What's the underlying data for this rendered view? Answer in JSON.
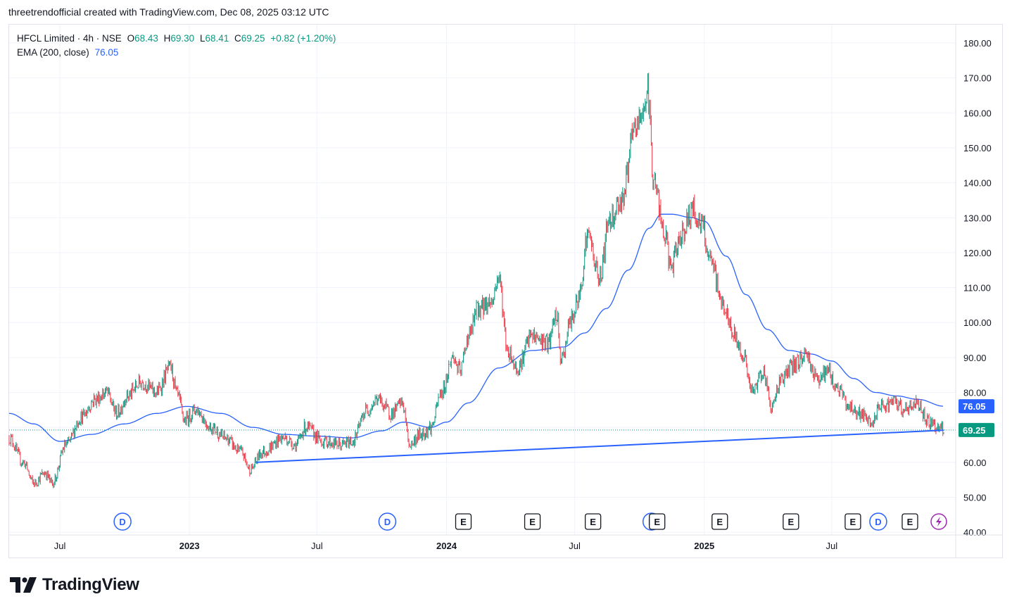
{
  "header": {
    "caption": "threetrendofficial created with TradingView.com, Dec 08, 2025 03:12 UTC"
  },
  "legend": {
    "symbol": "HFCL Limited · 4h · NSE",
    "o_label": "O",
    "o": "68.43",
    "h_label": "H",
    "h": "69.30",
    "l_label": "L",
    "l": "68.41",
    "c_label": "C",
    "c": "69.25",
    "change": "+0.82 (+1.20%)",
    "ema_label": "EMA (200, close)",
    "ema_value": "76.05"
  },
  "colors": {
    "up": "#089981",
    "down": "#f23645",
    "ema": "#2962ff",
    "trendline": "#2962ff",
    "grid": "#f0f3fa"
  },
  "chart_data": {
    "type": "candlestick",
    "timeframe": "4h",
    "y_ticks": [
      "180.00",
      "170.00",
      "160.00",
      "150.00",
      "140.00",
      "130.00",
      "120.00",
      "110.00",
      "100.00",
      "90.00",
      "80.00",
      "70.00",
      "60.00",
      "50.00",
      "40.00"
    ],
    "x_ticks": [
      {
        "label": "Jul",
        "date": "2022-07-01",
        "bold": false
      },
      {
        "label": "2023",
        "date": "2023-01-01",
        "bold": true
      },
      {
        "label": "Jul",
        "date": "2023-07-01",
        "bold": false
      },
      {
        "label": "2024",
        "date": "2024-01-01",
        "bold": true
      },
      {
        "label": "Jul",
        "date": "2024-07-01",
        "bold": false
      },
      {
        "label": "2025",
        "date": "2025-01-01",
        "bold": true
      },
      {
        "label": "Jul",
        "date": "2025-07-01",
        "bold": false
      }
    ],
    "ylim": [
      40,
      183
    ],
    "xlim": [
      "2022-04-20",
      "2025-12-24"
    ],
    "price_path": [
      [
        "2022-04-20",
        67
      ],
      [
        "2022-05-10",
        60
      ],
      [
        "2022-05-25",
        54
      ],
      [
        "2022-06-10",
        57
      ],
      [
        "2022-06-20",
        54
      ],
      [
        "2022-07-10",
        65
      ],
      [
        "2022-08-01",
        73
      ],
      [
        "2022-08-20",
        78
      ],
      [
        "2022-09-05",
        80
      ],
      [
        "2022-09-20",
        74
      ],
      [
        "2022-10-05",
        79
      ],
      [
        "2022-10-25",
        83
      ],
      [
        "2022-11-15",
        80
      ],
      [
        "2022-12-05",
        87
      ],
      [
        "2022-12-15",
        79
      ],
      [
        "2022-12-25",
        72
      ],
      [
        "2023-01-10",
        75
      ],
      [
        "2023-02-01",
        70
      ],
      [
        "2023-02-20",
        67
      ],
      [
        "2023-03-15",
        63
      ],
      [
        "2023-03-28",
        58
      ],
      [
        "2023-04-15",
        63
      ],
      [
        "2023-05-15",
        67
      ],
      [
        "2023-06-01",
        65
      ],
      [
        "2023-06-15",
        70
      ],
      [
        "2023-07-10",
        66
      ],
      [
        "2023-08-05",
        65
      ],
      [
        "2023-08-20",
        66
      ],
      [
        "2023-09-10",
        75
      ],
      [
        "2023-09-25",
        78
      ],
      [
        "2023-10-15",
        74
      ],
      [
        "2023-10-30",
        77
      ],
      [
        "2023-11-10",
        65
      ],
      [
        "2023-11-25",
        68
      ],
      [
        "2023-12-10",
        70
      ],
      [
        "2023-12-25",
        80
      ],
      [
        "2024-01-10",
        90
      ],
      [
        "2024-01-20",
        86
      ],
      [
        "2024-02-01",
        96
      ],
      [
        "2024-02-15",
        104
      ],
      [
        "2024-03-05",
        106
      ],
      [
        "2024-03-15",
        113
      ],
      [
        "2024-03-28",
        92
      ],
      [
        "2024-04-10",
        87
      ],
      [
        "2024-05-01",
        96
      ],
      [
        "2024-05-25",
        94
      ],
      [
        "2024-06-05",
        102
      ],
      [
        "2024-06-12",
        89
      ],
      [
        "2024-06-25",
        100
      ],
      [
        "2024-07-05",
        106
      ],
      [
        "2024-07-20",
        125
      ],
      [
        "2024-08-05",
        113
      ],
      [
        "2024-08-20",
        130
      ],
      [
        "2024-09-05",
        135
      ],
      [
        "2024-09-25",
        155
      ],
      [
        "2024-10-05",
        160
      ],
      [
        "2024-10-12",
        166
      ],
      [
        "2024-10-22",
        140
      ],
      [
        "2024-11-05",
        125
      ],
      [
        "2024-11-15",
        116
      ],
      [
        "2024-12-01",
        126
      ],
      [
        "2024-12-15",
        132
      ],
      [
        "2024-12-28",
        128
      ],
      [
        "2025-01-10",
        117
      ],
      [
        "2025-01-28",
        105
      ],
      [
        "2025-02-10",
        97
      ],
      [
        "2025-02-25",
        91
      ],
      [
        "2025-03-10",
        80
      ],
      [
        "2025-03-25",
        86
      ],
      [
        "2025-04-07",
        76
      ],
      [
        "2025-04-20",
        84
      ],
      [
        "2025-05-10",
        88
      ],
      [
        "2025-05-25",
        91
      ],
      [
        "2025-06-10",
        84
      ],
      [
        "2025-06-25",
        86
      ],
      [
        "2025-07-10",
        81
      ],
      [
        "2025-07-25",
        76
      ],
      [
        "2025-08-10",
        74
      ],
      [
        "2025-08-25",
        71
      ],
      [
        "2025-09-10",
        76
      ],
      [
        "2025-09-25",
        77
      ],
      [
        "2025-10-15",
        75
      ],
      [
        "2025-10-30",
        77
      ],
      [
        "2025-11-15",
        72
      ],
      [
        "2025-11-28",
        70
      ],
      [
        "2025-12-07",
        69.25
      ]
    ],
    "ema200_path": [
      [
        "2022-04-20",
        74
      ],
      [
        "2022-05-25",
        71
      ],
      [
        "2022-07-01",
        66
      ],
      [
        "2022-08-15",
        68
      ],
      [
        "2022-10-01",
        71
      ],
      [
        "2022-11-15",
        74
      ],
      [
        "2022-12-28",
        76
      ],
      [
        "2023-02-15",
        74
      ],
      [
        "2023-04-01",
        70
      ],
      [
        "2023-05-15",
        68
      ],
      [
        "2023-07-01",
        67.5
      ],
      [
        "2023-08-20",
        67
      ],
      [
        "2023-10-01",
        69
      ],
      [
        "2023-11-01",
        71.5
      ],
      [
        "2023-12-10",
        70
      ],
      [
        "2024-01-01",
        71.5
      ],
      [
        "2024-02-01",
        77
      ],
      [
        "2024-03-15",
        87
      ],
      [
        "2024-05-01",
        92
      ],
      [
        "2024-06-15",
        93
      ],
      [
        "2024-07-15",
        97
      ],
      [
        "2024-08-15",
        104
      ],
      [
        "2024-09-15",
        115
      ],
      [
        "2024-10-15",
        127
      ],
      [
        "2024-11-01",
        131
      ],
      [
        "2024-11-15",
        131
      ],
      [
        "2024-12-15",
        130
      ],
      [
        "2025-01-01",
        129
      ],
      [
        "2025-02-01",
        119
      ],
      [
        "2025-03-01",
        108
      ],
      [
        "2025-04-01",
        98
      ],
      [
        "2025-05-01",
        92
      ],
      [
        "2025-06-01",
        91
      ],
      [
        "2025-07-01",
        89
      ],
      [
        "2025-08-01",
        84
      ],
      [
        "2025-09-01",
        80
      ],
      [
        "2025-10-01",
        79
      ],
      [
        "2025-11-01",
        78
      ],
      [
        "2025-12-07",
        76.05
      ]
    ],
    "trendline": {
      "start": [
        "2023-04-06",
        60.0
      ],
      "end": [
        "2025-12-07",
        69.2
      ]
    },
    "last_price": "69.25",
    "ema_last": "76.05",
    "events": [
      {
        "type": "D",
        "date": "2022-09-28"
      },
      {
        "type": "D",
        "date": "2023-10-09"
      },
      {
        "type": "E",
        "date": "2024-01-25"
      },
      {
        "type": "E",
        "date": "2024-05-02"
      },
      {
        "type": "E",
        "date": "2024-07-27"
      },
      {
        "type": "D",
        "date": "2024-10-18"
      },
      {
        "type": "E",
        "date": "2024-10-26"
      },
      {
        "type": "E",
        "date": "2025-01-23"
      },
      {
        "type": "E",
        "date": "2025-05-04"
      },
      {
        "type": "E",
        "date": "2025-07-31"
      },
      {
        "type": "D",
        "date": "2025-09-05"
      },
      {
        "type": "E",
        "date": "2025-10-20"
      },
      {
        "type": "S",
        "date": "2025-11-30"
      }
    ]
  },
  "branding": {
    "logo_text": "TradingView"
  }
}
